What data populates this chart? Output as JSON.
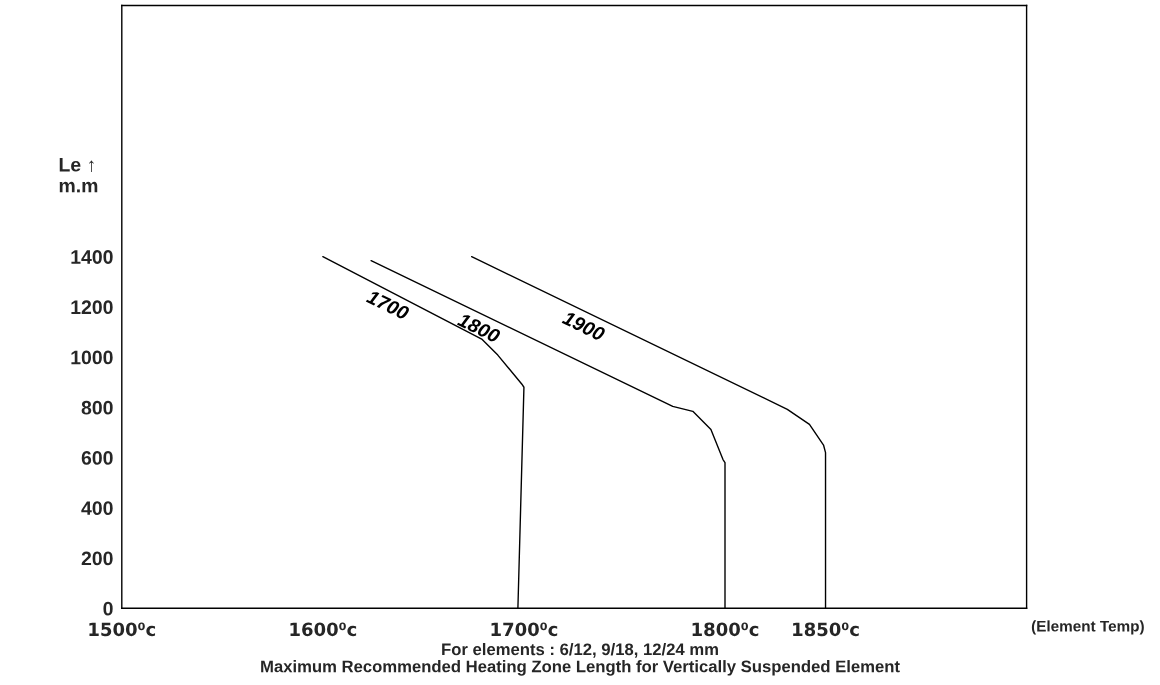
{
  "chart_data": {
    "type": "line",
    "series": [
      {
        "name": "1700",
        "color": "#000000",
        "x": [
          1600,
          1679,
          1687,
          1699,
          1700,
          1697
        ],
        "values": [
          1400,
          1072,
          1008,
          892,
          880,
          0
        ]
      },
      {
        "name": "1800",
        "color": "#000000",
        "x": [
          1624,
          1774,
          1784,
          1793,
          1799,
          1800,
          1800
        ],
        "values": [
          1384,
          804,
          784,
          712,
          592,
          580,
          0
        ]
      },
      {
        "name": "1900",
        "color": "#000000",
        "x": [
          1674,
          1831,
          1842,
          1849,
          1850,
          1850
        ],
        "values": [
          1400,
          792,
          732,
          650,
          620,
          0
        ]
      }
    ],
    "xlim": [
      1500,
      1950
    ],
    "ylim": [
      0,
      2400
    ],
    "xticks": [
      {
        "value": 1500,
        "label": "1500⁰c"
      },
      {
        "value": 1600,
        "label": "1600⁰c"
      },
      {
        "value": 1700,
        "label": "1700⁰c"
      },
      {
        "value": 1800,
        "label": "1800⁰c"
      },
      {
        "value": 1850,
        "label": "1850⁰c"
      }
    ],
    "yticks": [
      0,
      200,
      400,
      600,
      800,
      1000,
      1200,
      1400
    ],
    "ylabel": "Le ↑\nm.m",
    "xlabel": "(Element Temp)",
    "annotations": [
      "For elements : 6/12, 9/18, 12/24 mm",
      "Maximum Recommended Heating Zone Length for Vertically Suspended Element"
    ],
    "grid": false,
    "legend": false,
    "marker": "none",
    "line_style": "solid"
  }
}
